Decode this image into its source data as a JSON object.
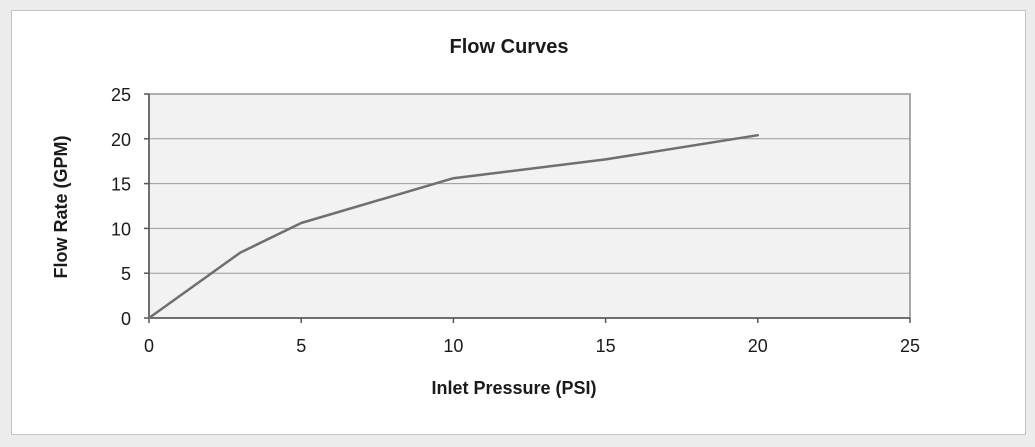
{
  "chart_data": {
    "type": "line",
    "title": "Flow Curves",
    "xlabel": "Inlet Pressure (PSI)",
    "ylabel": "Flow Rate (GPM)",
    "xlim": [
      0,
      25
    ],
    "ylim": [
      0,
      25
    ],
    "xticks": [
      "0",
      "5",
      "10",
      "15",
      "20",
      "25"
    ],
    "yticks": [
      "0",
      "5",
      "10",
      "15",
      "20",
      "25"
    ],
    "grid": true,
    "series": [
      {
        "x": [
          0,
          3,
          5,
          10,
          15,
          20
        ],
        "y": [
          0,
          7.3,
          10.6,
          15.6,
          17.7,
          20.4
        ]
      }
    ],
    "colors": {
      "line": "#6f6f6f",
      "plot_background": "#f2f2f2",
      "gridline": "#9a9a9a"
    }
  }
}
